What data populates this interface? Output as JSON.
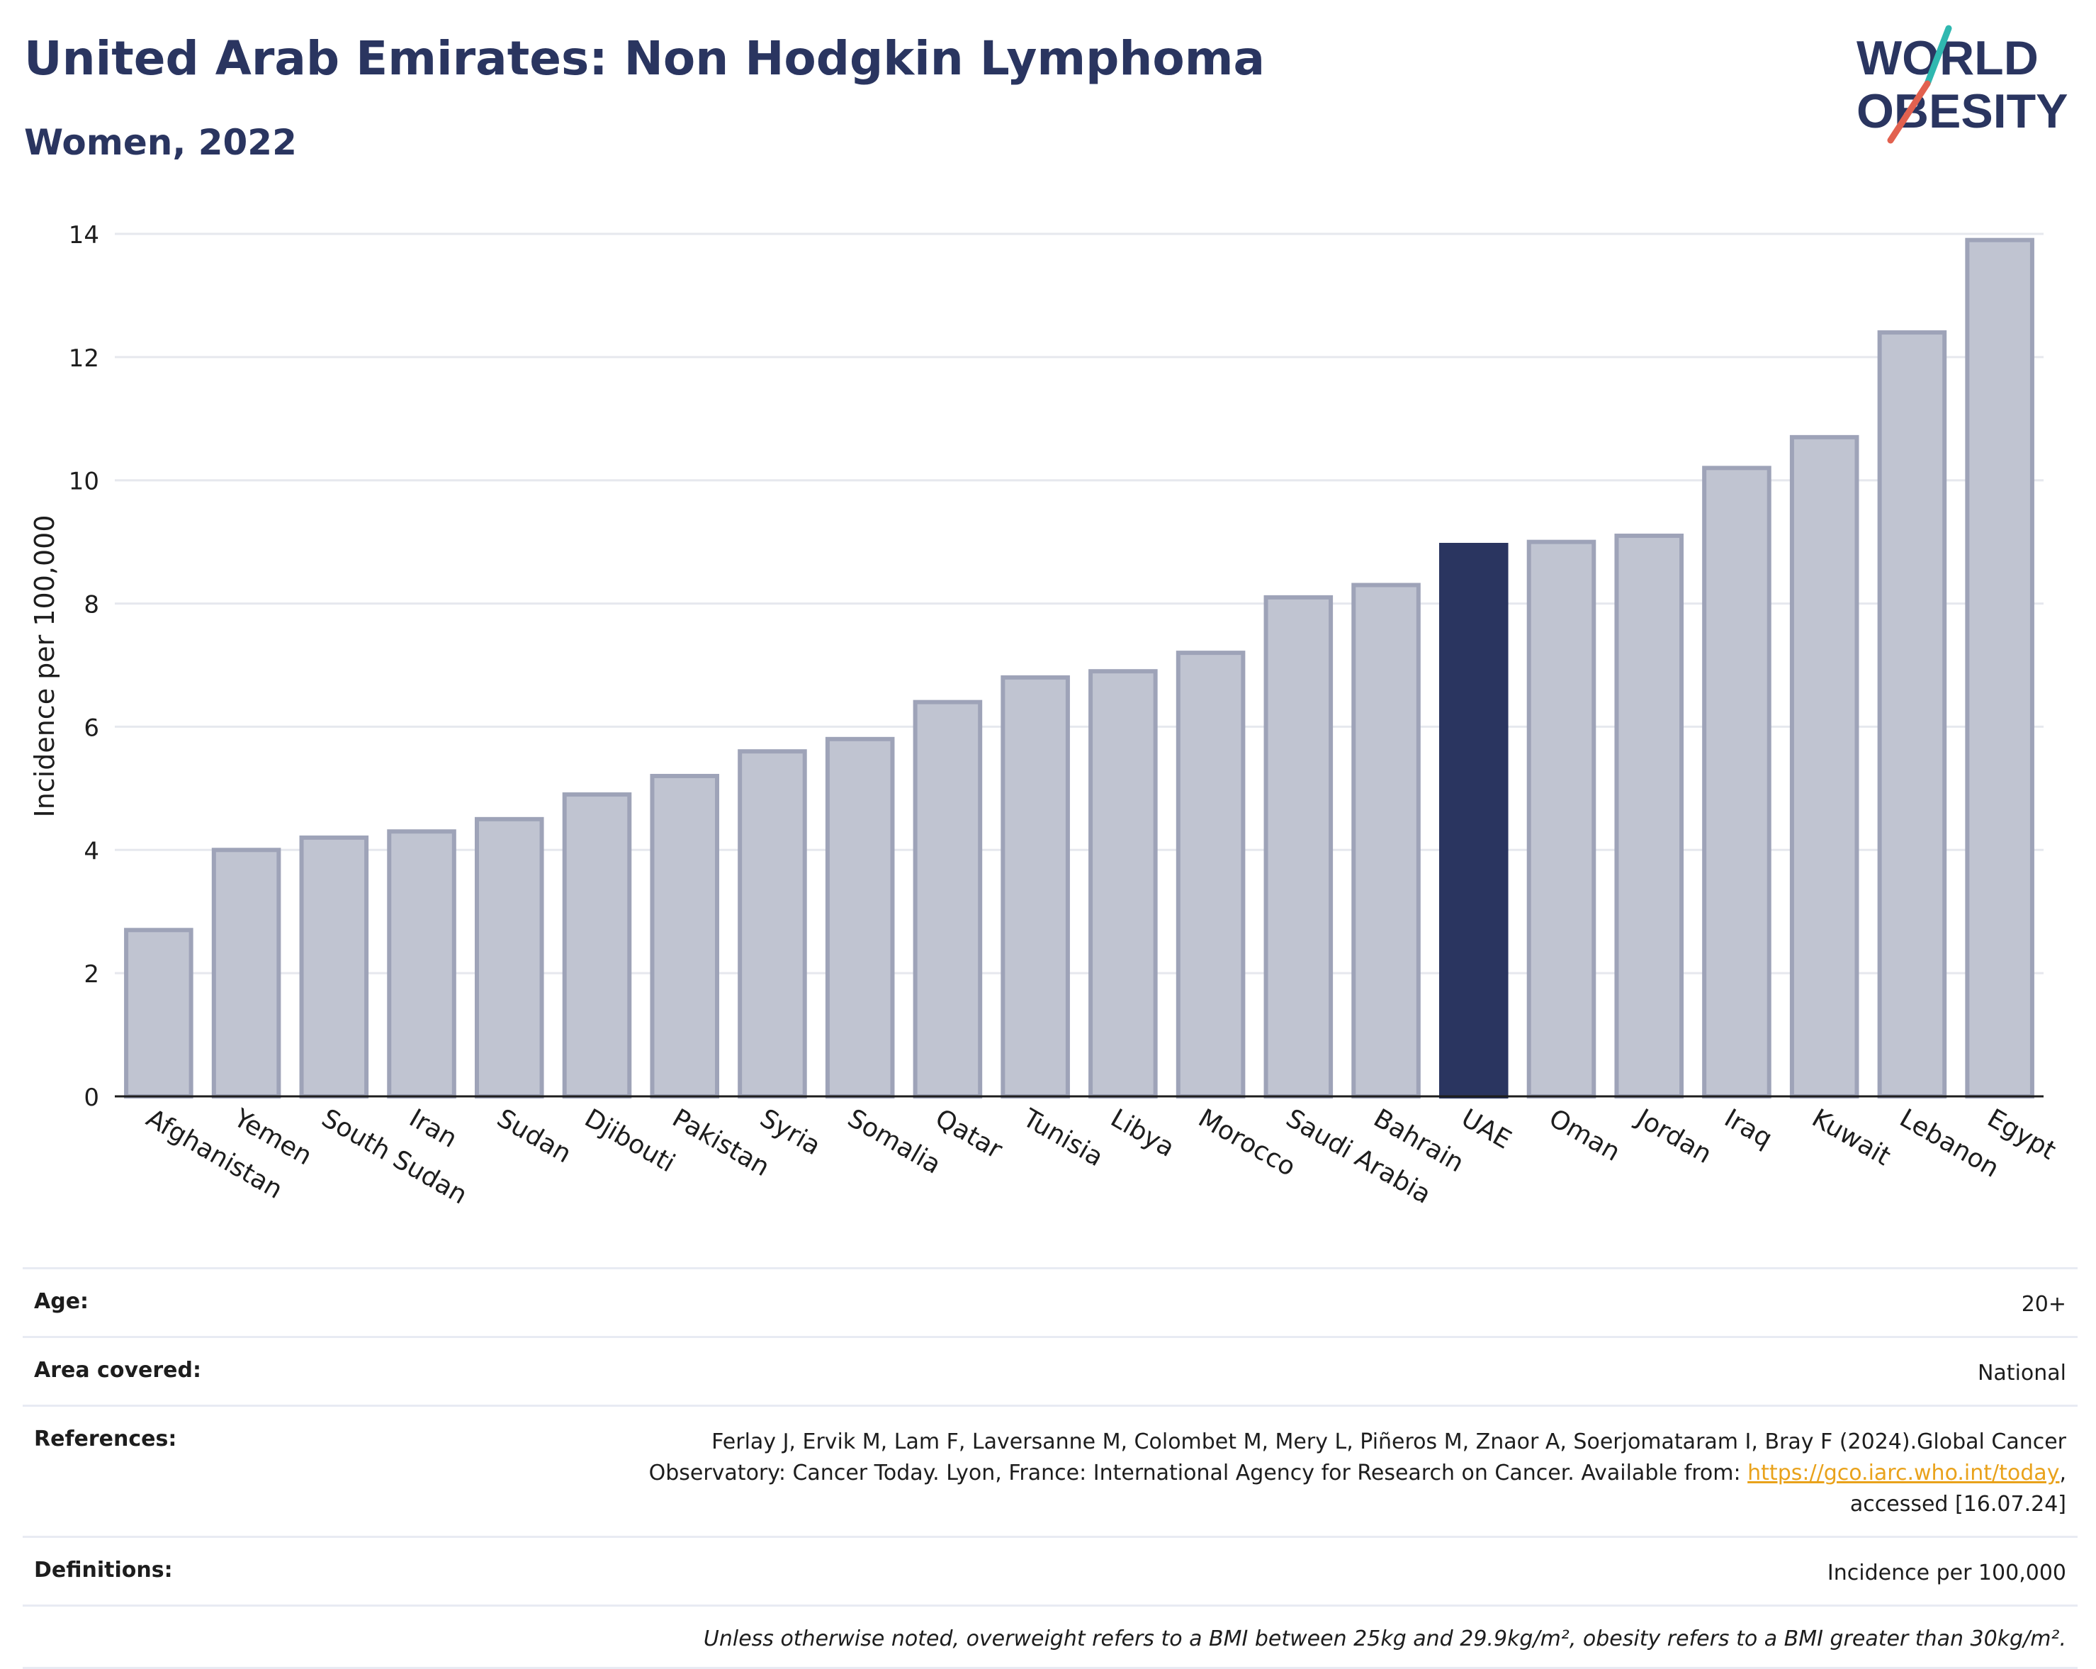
{
  "title": "United Arab Emirates: Non Hodgkin Lymphoma",
  "subtitle": "Women, 2022",
  "logo": {
    "line1": "WORLD",
    "line2": "OBESITY",
    "accent_teal": "#2fb8b0",
    "accent_red": "#e2614f"
  },
  "colors": {
    "bar": "#c0c4d1",
    "bar_border": "#9ea3b8",
    "highlight": "#2a3560",
    "grid": "#e6e8ee",
    "text": "#1d1d1d"
  },
  "chart_data": {
    "type": "bar",
    "ylabel": "Incidence per 100,000",
    "ylim": [
      0,
      14
    ],
    "yticks": [
      0,
      2,
      4,
      6,
      8,
      10,
      12,
      14
    ],
    "grid": true,
    "highlight": "UAE",
    "categories": [
      "Afghanistan",
      "Yemen",
      "South Sudan",
      "Iran",
      "Sudan",
      "Djibouti",
      "Pakistan",
      "Syria",
      "Somalia",
      "Qatar",
      "Tunisia",
      "Libya",
      "Morocco",
      "Saudi Arabia",
      "Bahrain",
      "UAE",
      "Oman",
      "Jordan",
      "Iraq",
      "Kuwait",
      "Lebanon",
      "Egypt"
    ],
    "values": [
      2.7,
      4.0,
      4.2,
      4.3,
      4.5,
      4.9,
      5.2,
      5.6,
      5.8,
      6.4,
      6.8,
      6.9,
      7.2,
      8.1,
      8.3,
      8.95,
      9.0,
      9.1,
      10.2,
      10.7,
      12.4,
      13.9
    ]
  },
  "info": {
    "age_label": "Age:",
    "age_value": "20+",
    "area_label": "Area covered:",
    "area_value": "National",
    "references_label": "References:",
    "references_line1": "Ferlay J, Ervik M, Lam F, Laversanne M, Colombet M, Mery L, Piñeros M, Znaor A, Soerjomataram I, Bray F (2024).Global Cancer",
    "references_line2_pre": "Observatory: Cancer Today. Lyon, France: International Agency for Research on Cancer. Available from: ",
    "references_link": "https://gco.iarc.who.int/today",
    "references_line2_post": ",",
    "references_line3": "accessed [16.07.24]",
    "definitions_label": "Definitions:",
    "definitions_value": "Incidence per 100,000",
    "note": "Unless otherwise noted, overweight refers to a BMI between 25kg and 29.9kg/m², obesity refers to a BMI greater than 30kg/m²."
  }
}
